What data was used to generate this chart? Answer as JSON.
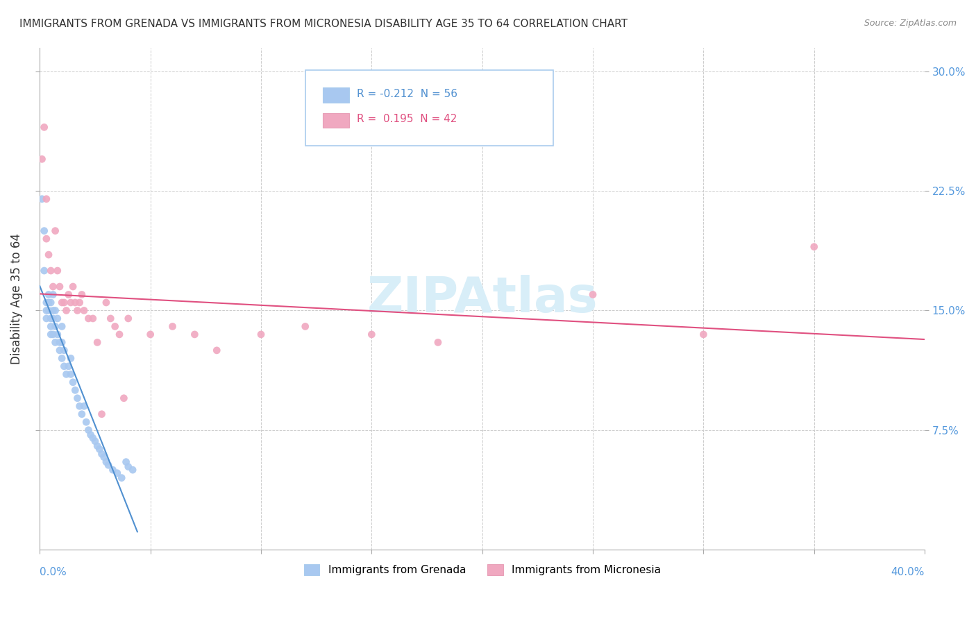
{
  "title": "IMMIGRANTS FROM GRENADA VS IMMIGRANTS FROM MICRONESIA DISABILITY AGE 35 TO 64 CORRELATION CHART",
  "source": "Source: ZipAtlas.com",
  "ylabel_label": "Disability Age 35 to 64",
  "yticks": [
    "7.5%",
    "15.0%",
    "22.5%",
    "30.0%"
  ],
  "ytick_vals": [
    0.075,
    0.15,
    0.225,
    0.3
  ],
  "xtick_vals": [
    0.0,
    0.05,
    0.1,
    0.15,
    0.2,
    0.25,
    0.3,
    0.35,
    0.4
  ],
  "xlim": [
    0.0,
    0.4
  ],
  "ylim": [
    0.0,
    0.315
  ],
  "grenada_R": -0.212,
  "grenada_N": 56,
  "micronesia_R": 0.195,
  "micronesia_N": 42,
  "grenada_color": "#a8c8f0",
  "micronesia_color": "#f0a8c0",
  "grenada_line_color": "#5090d0",
  "micronesia_line_color": "#e05080",
  "background_color": "#ffffff",
  "watermark_text": "ZIPAtlas",
  "watermark_color": "#d8eef8",
  "grenada_x": [
    0.001,
    0.002,
    0.002,
    0.003,
    0.003,
    0.003,
    0.004,
    0.004,
    0.004,
    0.005,
    0.005,
    0.005,
    0.005,
    0.006,
    0.006,
    0.006,
    0.006,
    0.007,
    0.007,
    0.007,
    0.008,
    0.008,
    0.009,
    0.009,
    0.01,
    0.01,
    0.01,
    0.011,
    0.011,
    0.012,
    0.013,
    0.014,
    0.014,
    0.015,
    0.016,
    0.017,
    0.018,
    0.019,
    0.02,
    0.021,
    0.022,
    0.023,
    0.024,
    0.025,
    0.026,
    0.027,
    0.028,
    0.029,
    0.03,
    0.031,
    0.033,
    0.035,
    0.037,
    0.039,
    0.04,
    0.042
  ],
  "grenada_y": [
    0.22,
    0.2,
    0.175,
    0.155,
    0.15,
    0.145,
    0.16,
    0.155,
    0.15,
    0.155,
    0.145,
    0.14,
    0.135,
    0.16,
    0.15,
    0.145,
    0.135,
    0.15,
    0.14,
    0.13,
    0.145,
    0.135,
    0.13,
    0.125,
    0.14,
    0.13,
    0.12,
    0.125,
    0.115,
    0.11,
    0.115,
    0.12,
    0.11,
    0.105,
    0.1,
    0.095,
    0.09,
    0.085,
    0.09,
    0.08,
    0.075,
    0.072,
    0.07,
    0.068,
    0.065,
    0.063,
    0.06,
    0.058,
    0.055,
    0.053,
    0.05,
    0.048,
    0.045,
    0.055,
    0.052,
    0.05
  ],
  "micronesia_x": [
    0.001,
    0.002,
    0.003,
    0.003,
    0.004,
    0.005,
    0.006,
    0.007,
    0.008,
    0.009,
    0.01,
    0.011,
    0.012,
    0.013,
    0.014,
    0.015,
    0.016,
    0.017,
    0.018,
    0.019,
    0.02,
    0.022,
    0.024,
    0.026,
    0.028,
    0.03,
    0.032,
    0.034,
    0.036,
    0.038,
    0.04,
    0.05,
    0.06,
    0.07,
    0.08,
    0.1,
    0.12,
    0.15,
    0.18,
    0.25,
    0.3,
    0.35
  ],
  "micronesia_y": [
    0.245,
    0.265,
    0.195,
    0.22,
    0.185,
    0.175,
    0.165,
    0.2,
    0.175,
    0.165,
    0.155,
    0.155,
    0.15,
    0.16,
    0.155,
    0.165,
    0.155,
    0.15,
    0.155,
    0.16,
    0.15,
    0.145,
    0.145,
    0.13,
    0.085,
    0.155,
    0.145,
    0.14,
    0.135,
    0.095,
    0.145,
    0.135,
    0.14,
    0.135,
    0.125,
    0.135,
    0.14,
    0.135,
    0.13,
    0.16,
    0.135,
    0.19
  ]
}
